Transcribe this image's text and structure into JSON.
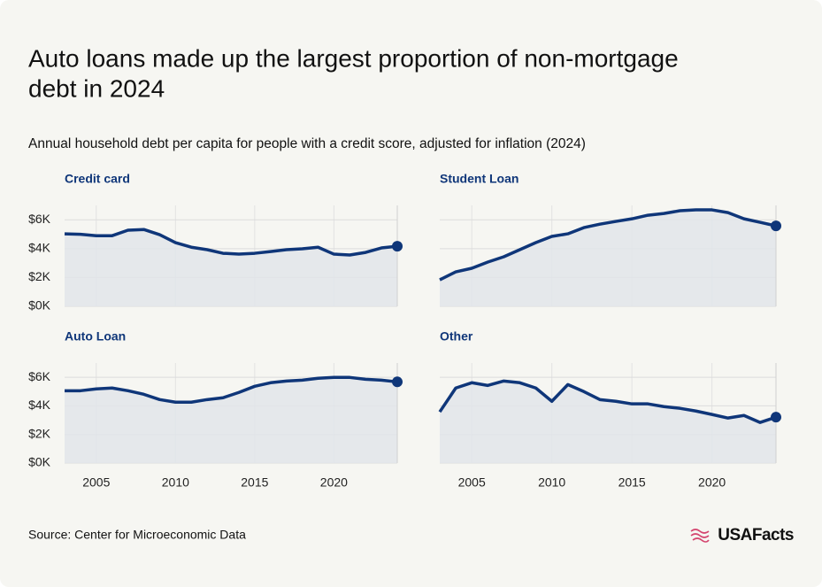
{
  "title": [
    "Auto loans made up the largest proportion of non-mortgage",
    "debt in 2024"
  ],
  "subtitle": "Annual household debt per capita for people with a credit score, adjusted for inflation (2024)",
  "source": "Source: Center for Microeconomic Data",
  "logo": "USAFacts",
  "chart_data": [
    {
      "type": "line",
      "title": "Credit card",
      "color": "#0f3679",
      "area_color": "#e2e5ea",
      "grid": true,
      "ytick_labels": true,
      "xtick_labels": false,
      "x": [
        2003,
        2004,
        2005,
        2006,
        2007,
        2008,
        2009,
        2010,
        2011,
        2012,
        2013,
        2014,
        2015,
        2016,
        2017,
        2018,
        2019,
        2020,
        2021,
        2022,
        2023,
        2024
      ],
      "values": [
        5030,
        5000,
        4900,
        4900,
        5280,
        5330,
        4970,
        4420,
        4100,
        3930,
        3680,
        3620,
        3680,
        3800,
        3930,
        3990,
        4100,
        3620,
        3560,
        3740,
        4050,
        4170
      ],
      "xlim": [
        2003,
        2024
      ],
      "xticks": [
        2005,
        2010,
        2015,
        2020
      ],
      "ylim": [
        0,
        7000
      ],
      "yticks": [
        {
          "value": 0,
          "label": "$0K"
        },
        {
          "value": 2000,
          "label": "$2K"
        },
        {
          "value": 4000,
          "label": "$4K"
        },
        {
          "value": 6000,
          "label": "$6K"
        }
      ]
    },
    {
      "type": "line",
      "title": "Student Loan",
      "color": "#0f3679",
      "area_color": "#e2e5ea",
      "grid": true,
      "ytick_labels": false,
      "xtick_labels": false,
      "x": [
        2003,
        2004,
        2005,
        2006,
        2007,
        2008,
        2009,
        2010,
        2011,
        2012,
        2013,
        2014,
        2015,
        2016,
        2017,
        2018,
        2019,
        2020,
        2021,
        2022,
        2023,
        2024
      ],
      "values": [
        1840,
        2390,
        2640,
        3070,
        3440,
        3930,
        4420,
        4850,
        5030,
        5460,
        5700,
        5890,
        6070,
        6320,
        6440,
        6630,
        6690,
        6690,
        6500,
        6070,
        5830,
        5580
      ],
      "xlim": [
        2003,
        2024
      ],
      "xticks": [
        2005,
        2010,
        2015,
        2020
      ],
      "ylim": [
        0,
        7000
      ],
      "yticks": [
        {
          "value": 0,
          "label": "$0K"
        },
        {
          "value": 2000,
          "label": "$2K"
        },
        {
          "value": 4000,
          "label": "$4K"
        },
        {
          "value": 6000,
          "label": "$6K"
        }
      ]
    },
    {
      "type": "line",
      "title": "Auto Loan",
      "color": "#0f3679",
      "area_color": "#e2e5ea",
      "grid": true,
      "ytick_labels": true,
      "xtick_labels": true,
      "x": [
        2003,
        2004,
        2005,
        2006,
        2007,
        2008,
        2009,
        2010,
        2011,
        2012,
        2013,
        2014,
        2015,
        2016,
        2017,
        2018,
        2019,
        2020,
        2021,
        2022,
        2023,
        2024
      ],
      "values": [
        5060,
        5060,
        5190,
        5250,
        5060,
        4810,
        4440,
        4260,
        4260,
        4440,
        4570,
        4940,
        5370,
        5620,
        5740,
        5800,
        5930,
        5990,
        5990,
        5860,
        5800,
        5680
      ],
      "xlim": [
        2003,
        2024
      ],
      "xticks": [
        2005,
        2010,
        2015,
        2020
      ],
      "ylim": [
        0,
        7000
      ],
      "yticks": [
        {
          "value": 0,
          "label": "$0K"
        },
        {
          "value": 2000,
          "label": "$2K"
        },
        {
          "value": 4000,
          "label": "$4K"
        },
        {
          "value": 6000,
          "label": "$6K"
        }
      ]
    },
    {
      "type": "line",
      "title": "Other",
      "color": "#0f3679",
      "area_color": "#e2e5ea",
      "grid": true,
      "ytick_labels": false,
      "xtick_labels": true,
      "x": [
        2003,
        2004,
        2005,
        2006,
        2007,
        2008,
        2009,
        2010,
        2011,
        2012,
        2013,
        2014,
        2015,
        2016,
        2017,
        2018,
        2019,
        2020,
        2021,
        2022,
        2023,
        2024
      ],
      "values": [
        3580,
        5250,
        5620,
        5430,
        5740,
        5620,
        5250,
        4320,
        5490,
        5000,
        4440,
        4320,
        4140,
        4140,
        3950,
        3830,
        3640,
        3400,
        3150,
        3330,
        2840,
        3210
      ],
      "xlim": [
        2003,
        2024
      ],
      "xticks": [
        2005,
        2010,
        2015,
        2020
      ],
      "ylim": [
        0,
        7000
      ],
      "yticks": [
        {
          "value": 0,
          "label": "$0K"
        },
        {
          "value": 2000,
          "label": "$2K"
        },
        {
          "value": 4000,
          "label": "$4K"
        },
        {
          "value": 6000,
          "label": "$6K"
        }
      ]
    }
  ]
}
